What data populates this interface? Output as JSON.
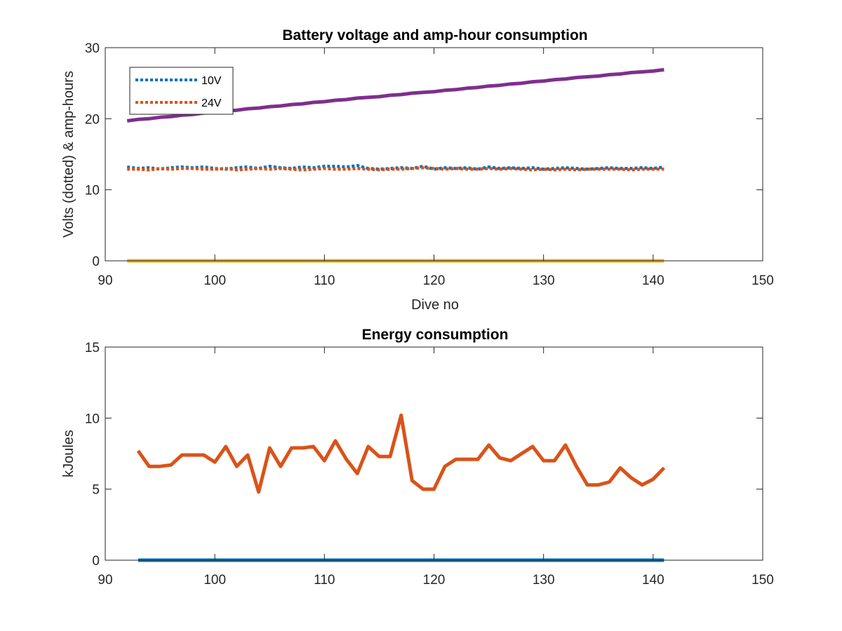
{
  "chart_data": [
    {
      "type": "line",
      "title": "Battery voltage and amp-hour consumption",
      "xlabel": "Dive no",
      "ylabel": "Volts (dotted) & amp-hours",
      "xlim": [
        90,
        150
      ],
      "ylim": [
        0,
        30
      ],
      "xticks": [
        "90",
        "100",
        "110",
        "120",
        "130",
        "140",
        "150"
      ],
      "yticks": [
        "0",
        "10",
        "20",
        "30"
      ],
      "grid": false,
      "legend": {
        "placement": "top-left",
        "entries": [
          "10V",
          "24V"
        ]
      },
      "x": [
        92,
        93,
        94,
        95,
        96,
        97,
        98,
        99,
        100,
        101,
        102,
        103,
        104,
        105,
        106,
        107,
        108,
        109,
        110,
        111,
        112,
        113,
        114,
        115,
        116,
        117,
        118,
        119,
        120,
        121,
        122,
        123,
        124,
        125,
        126,
        127,
        128,
        129,
        130,
        131,
        132,
        133,
        134,
        135,
        136,
        137,
        138,
        139,
        140,
        141
      ],
      "series": [
        {
          "name": "10V",
          "style": "dotted",
          "color": "#0072BD",
          "values": [
            13.2,
            13.0,
            13.1,
            12.9,
            13.1,
            13.2,
            13.1,
            13.2,
            13.0,
            12.9,
            13.1,
            13.2,
            13.0,
            13.3,
            13.1,
            13.0,
            13.2,
            13.1,
            13.3,
            13.3,
            13.2,
            13.4,
            13.0,
            12.9,
            13.0,
            13.1,
            13.0,
            13.3,
            12.9,
            13.1,
            13.0,
            13.1,
            12.9,
            13.2,
            13.0,
            13.1,
            13.0,
            13.1,
            12.9,
            13.0,
            13.1,
            13.0,
            12.9,
            13.0,
            13.1,
            13.0,
            13.0,
            13.1,
            13.0,
            13.2
          ]
        },
        {
          "name": "24V",
          "style": "dotted",
          "color": "#D95319",
          "values": [
            12.9,
            12.9,
            12.8,
            13.0,
            12.9,
            13.0,
            13.0,
            12.9,
            12.9,
            13.0,
            12.8,
            12.9,
            13.0,
            12.9,
            13.0,
            12.9,
            12.8,
            12.9,
            13.0,
            12.9,
            12.9,
            13.0,
            12.9,
            12.8,
            12.9,
            12.9,
            13.0,
            13.1,
            13.0,
            12.9,
            13.0,
            12.9,
            12.9,
            13.0,
            12.9,
            13.0,
            12.9,
            12.8,
            12.9,
            12.8,
            12.9,
            12.8,
            12.9,
            12.9,
            12.9,
            12.9,
            12.8,
            12.9,
            12.9,
            12.9
          ]
        },
        {
          "style": "solid",
          "color": "#7E2F8E",
          "values": [
            19.7,
            19.9,
            20.0,
            20.2,
            20.3,
            20.5,
            20.6,
            20.8,
            20.9,
            21.1,
            21.2,
            21.4,
            21.5,
            21.7,
            21.8,
            22.0,
            22.1,
            22.3,
            22.4,
            22.6,
            22.7,
            22.9,
            23.0,
            23.1,
            23.3,
            23.4,
            23.6,
            23.7,
            23.8,
            24.0,
            24.1,
            24.3,
            24.4,
            24.6,
            24.7,
            24.9,
            25.0,
            25.2,
            25.3,
            25.5,
            25.6,
            25.8,
            25.9,
            26.0,
            26.2,
            26.3,
            26.5,
            26.6,
            26.7,
            26.9
          ]
        },
        {
          "style": "solid",
          "color": "#EDB120",
          "values": [
            0,
            0,
            0,
            0,
            0,
            0,
            0,
            0,
            0,
            0,
            0,
            0,
            0,
            0,
            0,
            0,
            0,
            0,
            0,
            0,
            0,
            0,
            0,
            0,
            0,
            0,
            0,
            0,
            0,
            0,
            0,
            0,
            0,
            0,
            0,
            0,
            0,
            0,
            0,
            0,
            0,
            0,
            0,
            0,
            0,
            0,
            0,
            0,
            0,
            0
          ]
        }
      ]
    },
    {
      "type": "line",
      "title": "Energy consumption",
      "xlabel": "",
      "ylabel": "kJoules",
      "xlim": [
        90,
        150
      ],
      "ylim": [
        0,
        15
      ],
      "xticks": [
        "90",
        "100",
        "110",
        "120",
        "130",
        "140",
        "150"
      ],
      "yticks": [
        "0",
        "5",
        "10",
        "15"
      ],
      "grid": false,
      "series": [
        {
          "style": "solid",
          "color": "#0072BD",
          "x": [
            93,
            141
          ],
          "values": [
            0,
            0
          ]
        },
        {
          "style": "solid",
          "color": "#D95319",
          "x": [
            93,
            94,
            95,
            96,
            97,
            98,
            99,
            100,
            101,
            102,
            103,
            104,
            105,
            106,
            107,
            108,
            109,
            110,
            111,
            112,
            113,
            114,
            115,
            116,
            117,
            118,
            119,
            120,
            121,
            122,
            123,
            124,
            125,
            126,
            127,
            128,
            129,
            130,
            131,
            132,
            133,
            134,
            135,
            136,
            137,
            138,
            139,
            140,
            141
          ],
          "values": [
            7.7,
            6.6,
            6.6,
            6.7,
            7.4,
            7.4,
            7.4,
            6.9,
            8.0,
            6.6,
            7.4,
            4.8,
            7.9,
            6.6,
            7.9,
            7.9,
            8.0,
            7.0,
            8.4,
            7.1,
            6.1,
            8.0,
            7.3,
            7.3,
            10.2,
            5.6,
            5.0,
            5.0,
            6.6,
            7.1,
            7.1,
            7.1,
            8.1,
            7.2,
            7.0,
            7.5,
            8.0,
            7.0,
            7.0,
            8.1,
            6.6,
            5.3,
            5.3,
            5.5,
            6.5,
            5.8,
            5.3,
            5.7,
            6.5
          ]
        }
      ]
    }
  ]
}
